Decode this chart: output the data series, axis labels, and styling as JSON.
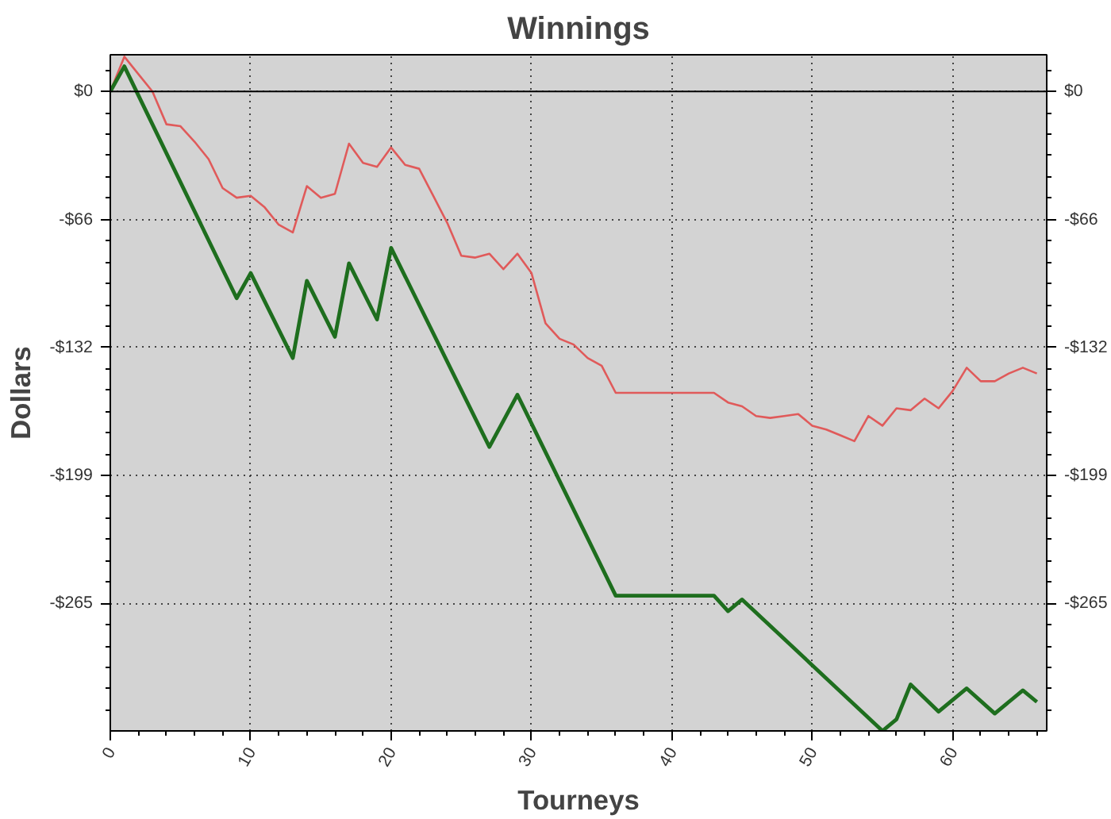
{
  "chart_data": {
    "type": "line",
    "title": "Winnings",
    "xlabel": "Tourneys",
    "ylabel": "Dollars",
    "xlim": [
      0,
      66.7
    ],
    "xticks": [
      0,
      10,
      20,
      30,
      40,
      50,
      60
    ],
    "ylim": [
      -331,
      19
    ],
    "yticks": [
      {
        "value": 0,
        "label": "$0"
      },
      {
        "value": -66.25,
        "label": "-$66"
      },
      {
        "value": -132.5,
        "label": "-$132"
      },
      {
        "value": -198.75,
        "label": "-$199"
      },
      {
        "value": -265,
        "label": "-$265"
      }
    ],
    "y2lim": [
      -331,
      19
    ],
    "y2ticks": [
      {
        "value": 0,
        "label": "$0"
      },
      {
        "value": -66.25,
        "label": "-$66"
      },
      {
        "value": -132.5,
        "label": "-$132"
      },
      {
        "value": -198.75,
        "label": "-$199"
      },
      {
        "value": -265,
        "label": "-$265"
      }
    ],
    "grid": true,
    "line_style": "solid",
    "marker": "none",
    "ref_lines": [
      {
        "axis": "y",
        "value": 0,
        "color": "#000000",
        "line_style": "solid"
      }
    ],
    "series": [
      {
        "color": "#e05a5a",
        "x": [
          0,
          1,
          2,
          3,
          4,
          5,
          6,
          7,
          8,
          9,
          10,
          11,
          12,
          13,
          14,
          15,
          16,
          17,
          18,
          19,
          20,
          21,
          22,
          23,
          24,
          25,
          26,
          27,
          28,
          29,
          30,
          31,
          32,
          33,
          34,
          35,
          36,
          43,
          44,
          45,
          46,
          47,
          48,
          49,
          50,
          51,
          52,
          53,
          54,
          55,
          56,
          57,
          58,
          59,
          60,
          61,
          62,
          63,
          64,
          65,
          66
        ],
        "values": [
          0,
          18,
          9,
          0,
          -17,
          -18,
          -26,
          -35,
          -50,
          -55,
          -54,
          -60,
          -69,
          -73,
          -49,
          -55,
          -53,
          -27,
          -37,
          -39,
          -29,
          -38,
          -40,
          -54,
          -68,
          -85,
          -86,
          -84,
          -92,
          -84,
          -94,
          -120,
          -128,
          -131,
          -138,
          -142,
          -156,
          -156,
          -161,
          -163,
          -168,
          -169,
          -168,
          -167,
          -173,
          -175,
          -178,
          -181,
          -168,
          -173,
          -164,
          -165,
          -159,
          -164,
          -155,
          -143,
          -150,
          -150,
          -146,
          -143,
          -146
        ]
      },
      {
        "color": "#1e6e1e",
        "x": [
          0,
          1,
          9,
          10,
          13,
          14,
          16,
          17,
          19,
          20,
          27,
          29,
          36,
          43,
          44,
          45,
          55,
          56,
          57,
          59,
          61,
          63,
          65,
          66
        ],
        "values": [
          0,
          13,
          -107,
          -94,
          -138,
          -98,
          -127,
          -89,
          -118,
          -81,
          -184,
          -157,
          -261,
          -261,
          -269,
          -263,
          -331,
          -325,
          -307,
          -321,
          -309,
          -322,
          -310,
          -316
        ]
      }
    ]
  }
}
